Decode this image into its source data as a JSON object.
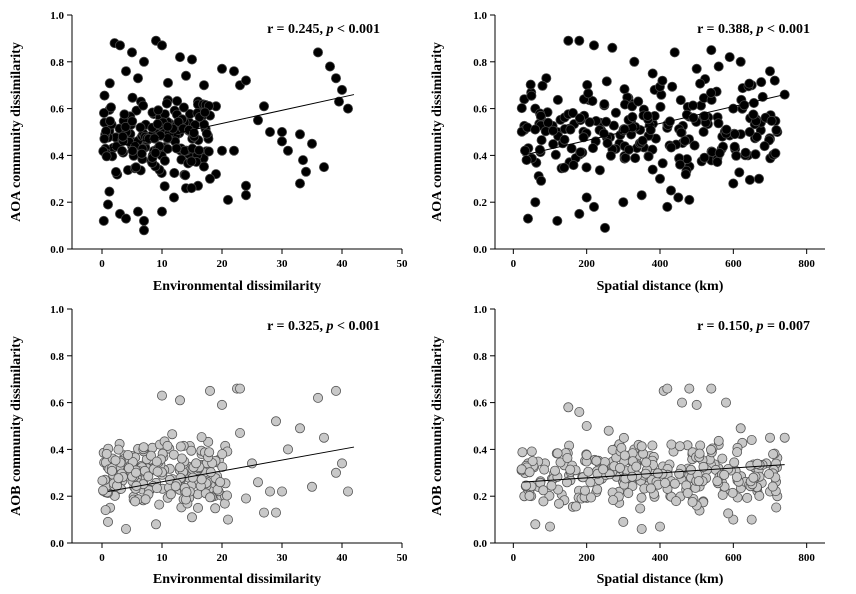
{
  "chart_data": [
    {
      "type": "scatter",
      "panel": "top-left",
      "stat": {
        "prefix": "r = 0.245, ",
        "p_symbol": "p",
        "suffix": " < 0.001"
      },
      "xlabel": "Environmental  dissimilarity",
      "ylabel": "AOA community  dissimilarity",
      "xlim": [
        -5,
        50
      ],
      "ylim": [
        0,
        1
      ],
      "xticks": [
        0,
        10,
        20,
        30,
        40,
        50
      ],
      "yticks": [
        0.0,
        0.2,
        0.4,
        0.6,
        0.8,
        1.0
      ],
      "ytick_labels": [
        "0.0",
        "0.2",
        "0.4",
        "0.6",
        "0.8",
        "1.0"
      ],
      "marker_fill": "#000000",
      "marker_stroke": "#444444",
      "trend": {
        "x": [
          1,
          42
        ],
        "y": [
          0.43,
          0.66
        ]
      },
      "scatter_seed": 11,
      "points": [
        [
          2.1,
          0.88
        ],
        [
          3.0,
          0.87
        ],
        [
          9.0,
          0.89
        ],
        [
          10.0,
          0.87
        ],
        [
          5.0,
          0.84
        ],
        [
          7.0,
          0.8
        ],
        [
          13.0,
          0.82
        ],
        [
          15.0,
          0.81
        ],
        [
          20.0,
          0.77
        ],
        [
          22.0,
          0.76
        ],
        [
          36.0,
          0.84
        ],
        [
          38.0,
          0.78
        ],
        [
          39.0,
          0.73
        ],
        [
          40.0,
          0.68
        ],
        [
          41.0,
          0.6
        ],
        [
          39.5,
          0.63
        ],
        [
          26.0,
          0.55
        ],
        [
          28.0,
          0.5
        ],
        [
          30.0,
          0.5
        ],
        [
          27.0,
          0.61
        ],
        [
          33.0,
          0.49
        ],
        [
          35.0,
          0.45
        ],
        [
          33.5,
          0.38
        ],
        [
          34.0,
          0.33
        ],
        [
          33.0,
          0.28
        ],
        [
          31.0,
          0.42
        ],
        [
          37.0,
          0.35
        ],
        [
          30.0,
          0.46
        ],
        [
          22.0,
          0.42
        ],
        [
          24.0,
          0.27
        ],
        [
          24.0,
          0.23
        ],
        [
          20.0,
          0.42
        ],
        [
          19.0,
          0.32
        ],
        [
          21.0,
          0.21
        ],
        [
          18.0,
          0.3
        ],
        [
          16.0,
          0.27
        ],
        [
          6.0,
          0.16
        ],
        [
          7.0,
          0.12
        ],
        [
          7.0,
          0.08
        ],
        [
          3.0,
          0.15
        ],
        [
          1.0,
          0.19
        ],
        [
          0.3,
          0.12
        ],
        [
          4.0,
          0.13
        ],
        [
          10.0,
          0.16
        ],
        [
          12.0,
          0.22
        ],
        [
          14.0,
          0.26
        ],
        [
          19.0,
          0.61
        ],
        [
          17.0,
          0.7
        ],
        [
          16.0,
          0.63
        ],
        [
          18.0,
          0.57
        ],
        [
          23.0,
          0.7
        ],
        [
          24.0,
          0.72
        ],
        [
          14.0,
          0.74
        ],
        [
          11.0,
          0.71
        ],
        [
          6.0,
          0.73
        ],
        [
          4.0,
          0.76
        ]
      ],
      "cloud": {
        "count": 170,
        "x": [
          0,
          18
        ],
        "y": [
          0.22,
          0.72
        ]
      }
    },
    {
      "type": "scatter",
      "panel": "top-right",
      "stat": {
        "prefix": "r = 0.388, ",
        "p_symbol": "p",
        "suffix": " < 0.001"
      },
      "xlabel": "Spatial distance (km)",
      "ylabel": "AOA community  dissimilarity",
      "xlim": [
        -50,
        850
      ],
      "ylim": [
        0,
        1
      ],
      "xticks": [
        0,
        200,
        400,
        600,
        800
      ],
      "yticks": [
        0.0,
        0.2,
        0.4,
        0.6,
        0.8,
        1.0
      ],
      "ytick_labels": [
        "0.0",
        "0.2",
        "0.4",
        "0.6",
        "0.8",
        "1.0"
      ],
      "marker_fill": "#000000",
      "marker_stroke": "#444444",
      "trend": {
        "x": [
          25,
          740
        ],
        "y": [
          0.4,
          0.66
        ]
      },
      "scatter_seed": 23,
      "points": [
        [
          150,
          0.89
        ],
        [
          180,
          0.89
        ],
        [
          220,
          0.87
        ],
        [
          270,
          0.86
        ],
        [
          440,
          0.84
        ],
        [
          540,
          0.85
        ],
        [
          590,
          0.82
        ],
        [
          620,
          0.8
        ],
        [
          700,
          0.76
        ],
        [
          740,
          0.66
        ],
        [
          720,
          0.5
        ],
        [
          700,
          0.47
        ],
        [
          670,
          0.3
        ],
        [
          600,
          0.28
        ],
        [
          640,
          0.4
        ],
        [
          250,
          0.09
        ],
        [
          180,
          0.15
        ],
        [
          120,
          0.12
        ],
        [
          40,
          0.13
        ],
        [
          60,
          0.2
        ],
        [
          480,
          0.21
        ],
        [
          450,
          0.22
        ],
        [
          430,
          0.25
        ],
        [
          30,
          0.64
        ],
        [
          60,
          0.6
        ],
        [
          90,
          0.73
        ],
        [
          330,
          0.8
        ],
        [
          380,
          0.75
        ],
        [
          500,
          0.77
        ],
        [
          560,
          0.78
        ],
        [
          650,
          0.7
        ],
        [
          680,
          0.65
        ],
        [
          690,
          0.56
        ],
        [
          600,
          0.6
        ],
        [
          400,
          0.3
        ],
        [
          420,
          0.18
        ],
        [
          300,
          0.2
        ],
        [
          350,
          0.23
        ],
        [
          220,
          0.18
        ],
        [
          200,
          0.22
        ]
      ],
      "cloud": {
        "count": 240,
        "x": [
          20,
          720
        ],
        "y": [
          0.22,
          0.8
        ]
      }
    },
    {
      "type": "scatter",
      "panel": "bottom-left",
      "stat": {
        "prefix": "r = 0.325, ",
        "p_symbol": "p",
        "suffix": " < 0.001"
      },
      "xlabel": "Environmental  dissimilarity",
      "ylabel": "AOB community  dissimilarity",
      "xlim": [
        -5,
        50
      ],
      "ylim": [
        0,
        1
      ],
      "xticks": [
        0,
        10,
        20,
        30,
        40,
        50
      ],
      "yticks": [
        0.0,
        0.2,
        0.4,
        0.6,
        0.8,
        1.0
      ],
      "ytick_labels": [
        "0.0",
        "0.2",
        "0.4",
        "0.6",
        "0.8",
        "1.0"
      ],
      "marker_fill": "#c8c8c8",
      "marker_stroke": "#555555",
      "trend": {
        "x": [
          1,
          42
        ],
        "y": [
          0.22,
          0.41
        ]
      },
      "scatter_seed": 37,
      "points": [
        [
          22.5,
          0.66
        ],
        [
          23.0,
          0.66
        ],
        [
          18.0,
          0.65
        ],
        [
          10.0,
          0.63
        ],
        [
          13.0,
          0.61
        ],
        [
          36.0,
          0.62
        ],
        [
          39.0,
          0.65
        ],
        [
          20.0,
          0.59
        ],
        [
          29.0,
          0.52
        ],
        [
          33.0,
          0.49
        ],
        [
          40.0,
          0.34
        ],
        [
          39.0,
          0.3
        ],
        [
          37.0,
          0.45
        ],
        [
          41.0,
          0.22
        ],
        [
          35.0,
          0.24
        ],
        [
          30.0,
          0.22
        ],
        [
          28.0,
          0.22
        ],
        [
          27.0,
          0.13
        ],
        [
          29.0,
          0.13
        ],
        [
          24.0,
          0.19
        ],
        [
          21.0,
          0.1
        ],
        [
          16.0,
          0.15
        ],
        [
          15.0,
          0.11
        ],
        [
          9.0,
          0.08
        ],
        [
          4.0,
          0.06
        ],
        [
          1.0,
          0.09
        ],
        [
          25.0,
          0.34
        ],
        [
          23.0,
          0.47
        ],
        [
          31.0,
          0.4
        ],
        [
          26.0,
          0.26
        ]
      ],
      "cloud": {
        "count": 230,
        "x": [
          0,
          21
        ],
        "y": [
          0.09,
          0.48
        ]
      }
    },
    {
      "type": "scatter",
      "panel": "bottom-right",
      "stat": {
        "prefix": "r = 0.150, ",
        "p_symbol": "p",
        "suffix": " = 0.007"
      },
      "xlabel": "Spatial distance (km)",
      "ylabel": "AOB community  dissimilarity",
      "xlim": [
        -50,
        850
      ],
      "ylim": [
        0,
        1
      ],
      "xticks": [
        0,
        200,
        400,
        600,
        800
      ],
      "yticks": [
        0.0,
        0.2,
        0.4,
        0.6,
        0.8,
        1.0
      ],
      "ytick_labels": [
        "0.0",
        "0.2",
        "0.4",
        "0.6",
        "0.8",
        "1.0"
      ],
      "marker_fill": "#c8c8c8",
      "marker_stroke": "#555555",
      "trend": {
        "x": [
          25,
          740
        ],
        "y": [
          0.26,
          0.335
        ]
      },
      "scatter_seed": 51,
      "points": [
        [
          410,
          0.65
        ],
        [
          420,
          0.66
        ],
        [
          480,
          0.66
        ],
        [
          540,
          0.66
        ],
        [
          460,
          0.6
        ],
        [
          500,
          0.59
        ],
        [
          580,
          0.6
        ],
        [
          150,
          0.58
        ],
        [
          180,
          0.56
        ],
        [
          620,
          0.49
        ],
        [
          650,
          0.44
        ],
        [
          740,
          0.45
        ],
        [
          700,
          0.45
        ],
        [
          690,
          0.34
        ],
        [
          720,
          0.2
        ],
        [
          700,
          0.22
        ],
        [
          650,
          0.1
        ],
        [
          600,
          0.1
        ],
        [
          400,
          0.07
        ],
        [
          300,
          0.09
        ],
        [
          350,
          0.06
        ],
        [
          100,
          0.07
        ],
        [
          60,
          0.08
        ],
        [
          40,
          0.34
        ],
        [
          30,
          0.2
        ],
        [
          200,
          0.5
        ],
        [
          260,
          0.48
        ],
        [
          330,
          0.4
        ],
        [
          560,
          0.42
        ],
        [
          620,
          0.26
        ]
      ],
      "cloud": {
        "count": 290,
        "x": [
          20,
          720
        ],
        "y": [
          0.1,
          0.48
        ]
      }
    }
  ]
}
